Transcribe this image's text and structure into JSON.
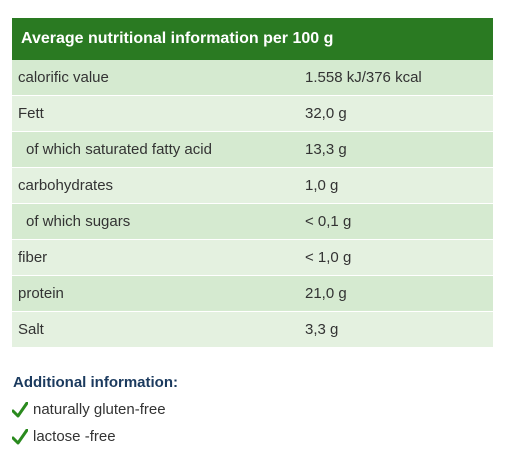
{
  "header": {
    "title": "Average nutritional information per 100 g"
  },
  "table": {
    "rows": [
      [
        "calorific value",
        "1.558 kJ/376 kcal"
      ],
      [
        "Fett",
        "32,0 g"
      ],
      [
        "of which saturated fatty acid",
        "13,3 g"
      ],
      [
        "carbohydrates",
        "1,0 g"
      ],
      [
        "of which sugars",
        "< 0,1 g"
      ],
      [
        "fiber",
        "< 1,0 g"
      ],
      [
        "protein",
        "21,0 g"
      ],
      [
        "Salt",
        "3,3 g"
      ]
    ]
  },
  "additional": {
    "title": "Additional information:",
    "items": [
      "naturally gluten-free",
      "lactose -free"
    ]
  }
}
